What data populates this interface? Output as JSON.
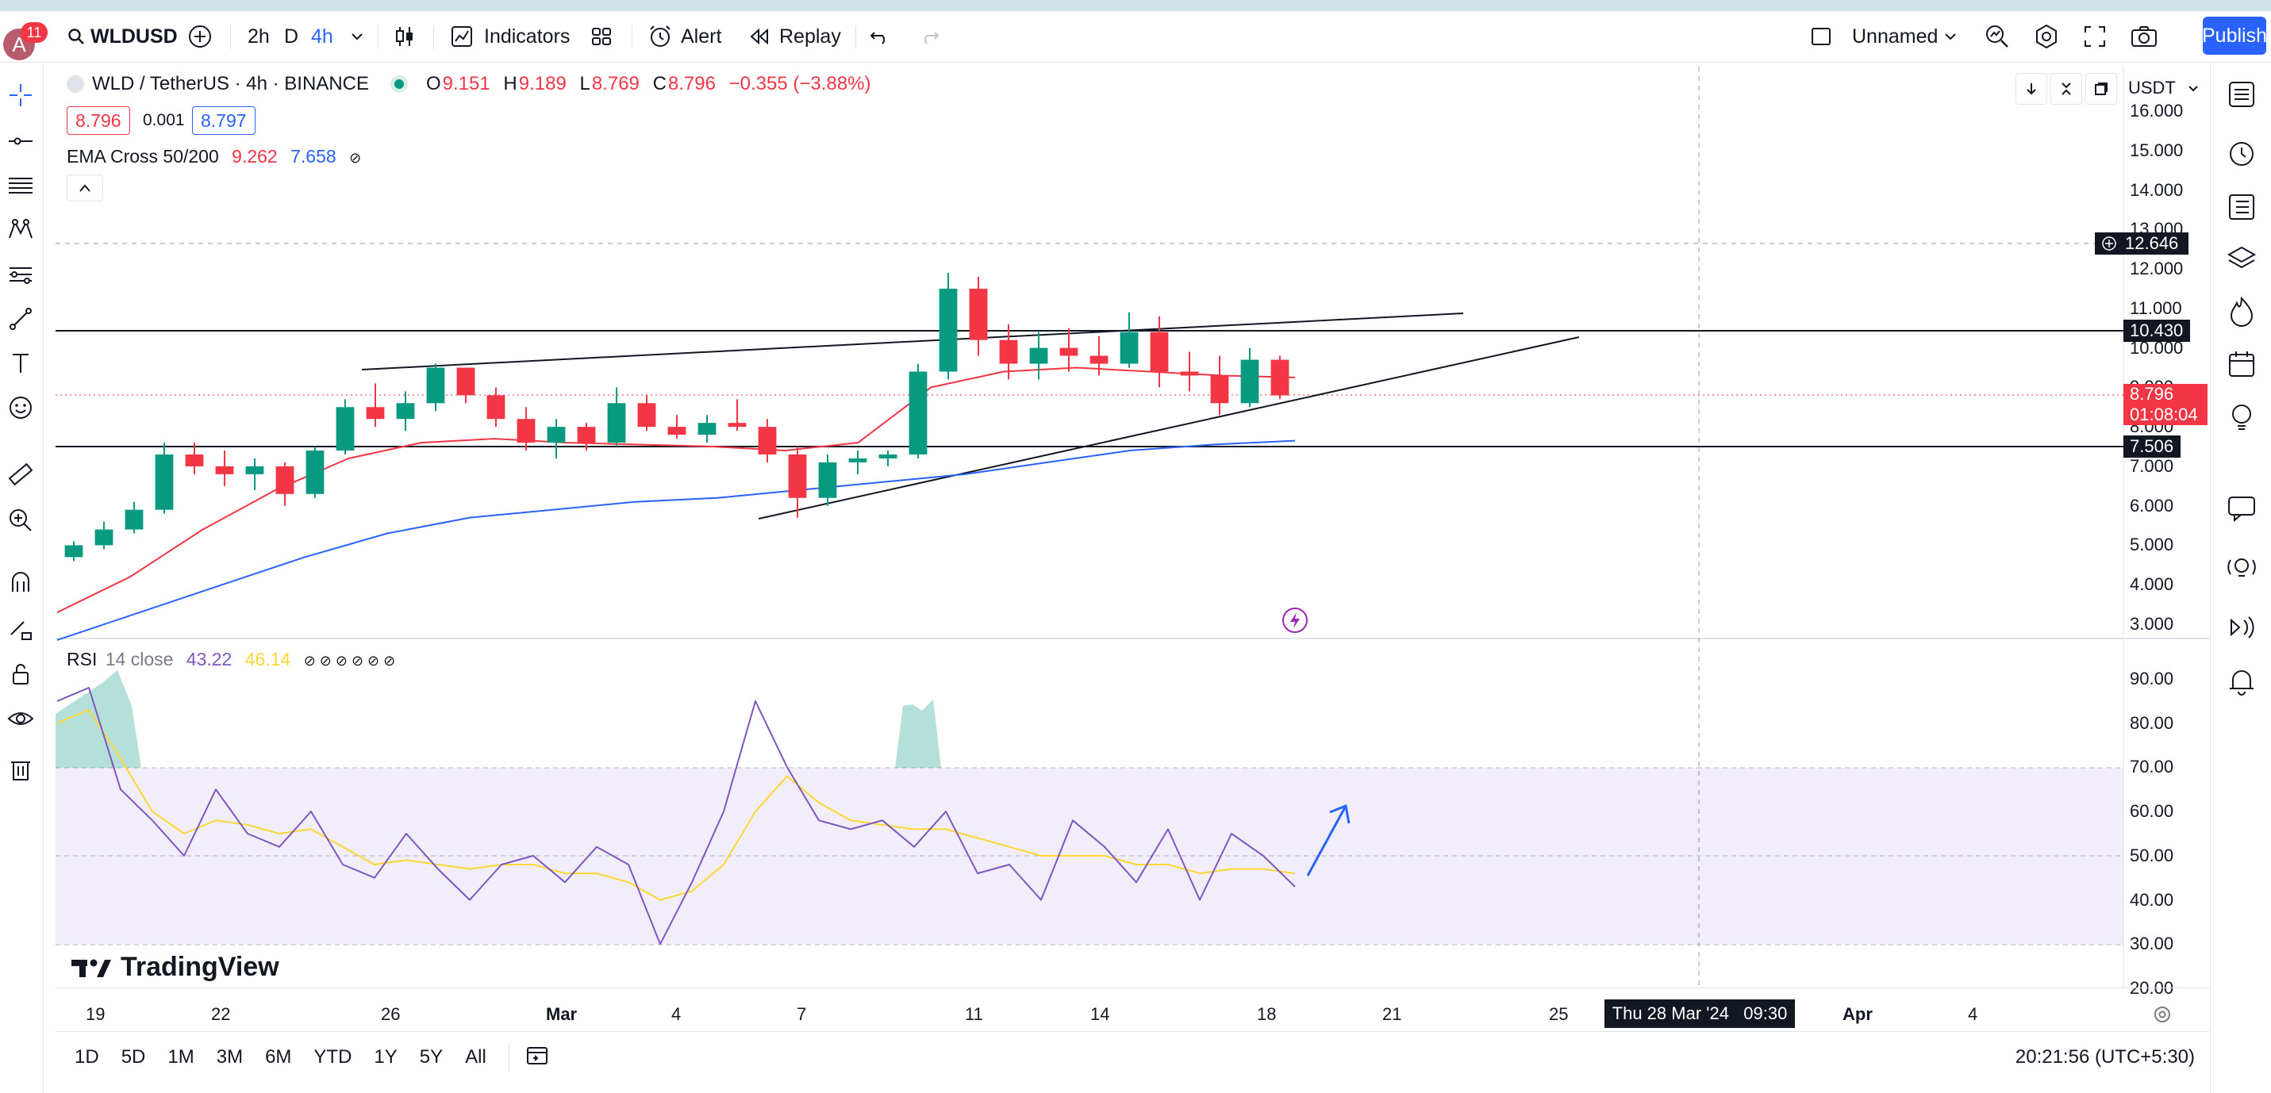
{
  "header": {
    "avatar_letter": "A",
    "notification_count": "11",
    "symbol": "WLDUSD",
    "intervals": [
      "2h",
      "D",
      "4h"
    ],
    "active_interval": "4h",
    "indicators_label": "Indicators",
    "alert_label": "Alert",
    "replay_label": "Replay",
    "layout_name": "Unnamed",
    "publish_label": "Publish"
  },
  "legend": {
    "pair": "WLD / TetherUS · 4h · BINANCE",
    "open_label": "O",
    "open": "9.151",
    "high_label": "H",
    "high": "9.189",
    "low_label": "L",
    "low": "8.769",
    "close_label": "C",
    "close": "8.796",
    "change": "−0.355 (−3.88%)",
    "bid": "8.796",
    "spread": "0.001",
    "ask": "8.797"
  },
  "ema": {
    "name": "EMA Cross 50/200",
    "v1": "9.262",
    "v2": "7.658",
    "eye": "⊘"
  },
  "rsi": {
    "name": "RSI",
    "params": "14 close",
    "v1": "43.22",
    "v2": "46.14",
    "flags": "⊘ ⊘ ⊘ ⊘ ⊘ ⊘"
  },
  "price_axis": {
    "currency": "USDT",
    "labels": [
      "16.000",
      "15.000",
      "14.000",
      "13.000",
      "12.000",
      "11.000",
      "10.000",
      "9.000",
      "8.000",
      "7.000",
      "6.000",
      "5.000",
      "4.000",
      "3.000"
    ],
    "tags": {
      "crosshair": "12.646",
      "level_high": "10.430",
      "last_price": "8.796",
      "countdown": "01:08:04",
      "level_low": "7.506"
    }
  },
  "rsi_axis": {
    "labels": [
      "90.00",
      "80.00",
      "70.00",
      "60.00",
      "50.00",
      "40.00",
      "30.00",
      "20.00"
    ]
  },
  "time_axis": {
    "labels": [
      "19",
      "22",
      "26",
      "Mar",
      "4",
      "7",
      "11",
      "14",
      "18",
      "21",
      "25",
      "Apr",
      "4"
    ],
    "crosshair": "Thu 28 Mar '24   09:30"
  },
  "bottom": {
    "ranges": [
      "1D",
      "5D",
      "1M",
      "3M",
      "6M",
      "YTD",
      "1Y",
      "5Y",
      "All"
    ],
    "clock": "20:21:56 (UTC+5:30)"
  },
  "brand": "TradingView",
  "colors": {
    "up": "#089981",
    "down": "#f23645",
    "ema50": "#f23645",
    "ema200": "#2962ff",
    "rsi": "#7e57c2",
    "rsi_ma": "#fdd835",
    "accent": "#2962ff"
  },
  "chart_data": {
    "type": "candlestick",
    "price_range": [
      2.5,
      16.4
    ],
    "series": [
      {
        "name": "EMA Cross 50/200",
        "values": [
          3.3,
          4.2,
          5.4,
          6.4,
          7.2,
          7.6,
          7.7,
          7.6,
          7.55,
          7.5,
          7.4,
          7.6,
          9.0,
          9.4,
          9.5,
          9.4,
          9.3,
          9.25
        ]
      },
      {
        "name": "EMA 200",
        "values": [
          2.6,
          3.3,
          4.0,
          4.7,
          5.3,
          5.7,
          5.9,
          6.1,
          6.2,
          6.4,
          6.6,
          6.8,
          7.1,
          7.4,
          7.55,
          7.65
        ]
      },
      {
        "name": "RSI 14 close",
        "values": [
          85,
          88,
          65,
          58,
          50,
          65,
          55,
          52,
          60,
          48,
          45,
          55,
          47,
          40,
          48,
          50,
          44,
          52,
          48,
          30,
          44,
          60,
          85,
          70,
          58,
          56,
          58,
          52,
          60,
          46,
          48,
          40,
          58,
          52,
          44,
          56,
          40,
          55,
          50,
          43
        ]
      },
      {
        "name": "RSI MA",
        "values": [
          80,
          83,
          72,
          60,
          55,
          58,
          57,
          55,
          56,
          52,
          48,
          49,
          48,
          47,
          48,
          48,
          46,
          46,
          44,
          40,
          42,
          48,
          60,
          68,
          62,
          58,
          57,
          56,
          56,
          54,
          52,
          50,
          50,
          50,
          48,
          48,
          46,
          47,
          47,
          46
        ]
      }
    ],
    "candles": [
      [
        4.7,
        5.1,
        4.6,
        5.0
      ],
      [
        5.0,
        5.6,
        4.9,
        5.4
      ],
      [
        5.4,
        6.1,
        5.3,
        5.9
      ],
      [
        5.9,
        7.6,
        5.8,
        7.3
      ],
      [
        7.3,
        7.6,
        6.8,
        7.0
      ],
      [
        7.0,
        7.4,
        6.5,
        6.8
      ],
      [
        6.8,
        7.2,
        6.4,
        7.0
      ],
      [
        7.0,
        7.1,
        6.0,
        6.3
      ],
      [
        6.3,
        7.5,
        6.2,
        7.4
      ],
      [
        7.4,
        8.7,
        7.3,
        8.5
      ],
      [
        8.5,
        9.1,
        8.0,
        8.2
      ],
      [
        8.2,
        8.9,
        7.9,
        8.6
      ],
      [
        8.6,
        9.6,
        8.4,
        9.5
      ],
      [
        9.5,
        9.5,
        8.6,
        8.8
      ],
      [
        8.8,
        9.0,
        8.0,
        8.2
      ],
      [
        8.2,
        8.5,
        7.4,
        7.6
      ],
      [
        7.6,
        8.2,
        7.2,
        8.0
      ],
      [
        8.0,
        8.1,
        7.4,
        7.6
      ],
      [
        7.6,
        9.0,
        7.5,
        8.6
      ],
      [
        8.6,
        8.8,
        7.9,
        8.0
      ],
      [
        8.0,
        8.3,
        7.7,
        7.8
      ],
      [
        7.8,
        8.3,
        7.6,
        8.1
      ],
      [
        8.1,
        8.7,
        7.9,
        8.0
      ],
      [
        8.0,
        8.2,
        7.1,
        7.3
      ],
      [
        7.3,
        7.5,
        5.7,
        6.2
      ],
      [
        6.2,
        7.3,
        6.0,
        7.1
      ],
      [
        7.1,
        7.4,
        6.8,
        7.2
      ],
      [
        7.2,
        7.4,
        7.0,
        7.3
      ],
      [
        7.3,
        9.6,
        7.2,
        9.4
      ],
      [
        9.4,
        11.9,
        9.2,
        11.5
      ],
      [
        11.5,
        11.8,
        9.8,
        10.2
      ],
      [
        10.2,
        10.6,
        9.2,
        9.6
      ],
      [
        9.6,
        10.4,
        9.2,
        10.0
      ],
      [
        10.0,
        10.5,
        9.4,
        9.8
      ],
      [
        9.8,
        10.3,
        9.3,
        9.6
      ],
      [
        9.6,
        10.9,
        9.5,
        10.4
      ],
      [
        10.4,
        10.8,
        9.0,
        9.4
      ],
      [
        9.4,
        9.9,
        8.9,
        9.3
      ],
      [
        9.3,
        9.8,
        8.3,
        8.6
      ],
      [
        8.6,
        10.0,
        8.5,
        9.7
      ],
      [
        9.7,
        9.8,
        8.7,
        8.796
      ]
    ],
    "time_labels": [
      "19",
      "22",
      "26",
      "Mar",
      "4",
      "7",
      "11",
      "14",
      "18",
      "21",
      "25",
      "Apr",
      "4"
    ],
    "rsi_range": [
      18,
      96
    ],
    "rsi_bands": [
      30,
      50,
      70
    ],
    "horizontal_levels": [
      10.43,
      7.506
    ],
    "crosshair_price": 12.646
  }
}
